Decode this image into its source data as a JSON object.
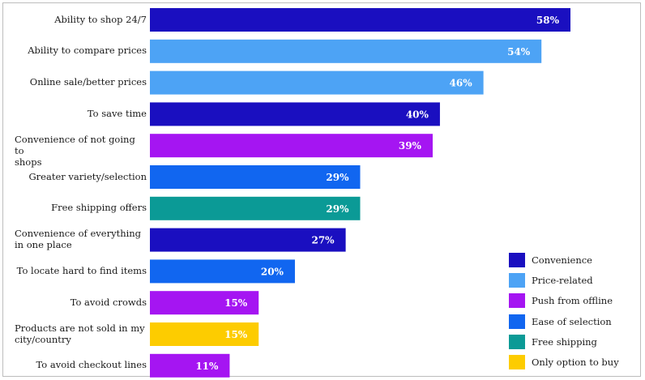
{
  "chart_data": {
    "type": "bar",
    "orientation": "horizontal",
    "xlim": [
      0,
      100
    ],
    "categories": [
      "Ability to shop 24/7",
      "Ability to compare prices",
      "Online sale/better prices",
      "To save time",
      "Convenience of not going to shops",
      "Greater variety/selection",
      "Free shipping offers",
      "Convenience of everything in one place",
      "To locate hard to find items",
      "To avoid crowds",
      "Products are not sold in my city/country",
      "To avoid checkout lines"
    ],
    "category_lines": [
      [
        "Ability to shop 24/7"
      ],
      [
        "Ability to compare prices"
      ],
      [
        "Online sale/better prices"
      ],
      [
        "To save time"
      ],
      [
        "Convenience of not going to",
        "shops"
      ],
      [
        "Greater variety/selection"
      ],
      [
        "Free shipping offers"
      ],
      [
        "Convenience of everything",
        "in one place"
      ],
      [
        "To locate hard to find items"
      ],
      [
        "To avoid crowds"
      ],
      [
        "Products are not sold in my",
        "city/country"
      ],
      [
        "To avoid checkout lines"
      ]
    ],
    "values": [
      58,
      54,
      46,
      40,
      39,
      29,
      29,
      27,
      20,
      15,
      15,
      11
    ],
    "value_labels": [
      "58%",
      "54%",
      "46%",
      "40%",
      "39%",
      "29%",
      "29%",
      "27%",
      "20%",
      "15%",
      "15%",
      "11%"
    ],
    "groups": [
      "Convenience",
      "Price-related",
      "Price-related",
      "Convenience",
      "Push from offline",
      "Ease of selection",
      "Free shipping",
      "Convenience",
      "Ease of selection",
      "Push from offline",
      "Only option to buy",
      "Push from offline"
    ],
    "legend": [
      {
        "name": "Convenience",
        "color": "#1a0fc0"
      },
      {
        "name": "Price-related",
        "color": "#4da3f5"
      },
      {
        "name": "Push from offline",
        "color": "#a515f2"
      },
      {
        "name": "Ease of selection",
        "color": "#1166f0"
      },
      {
        "name": "Free shipping",
        "color": "#0b9a96"
      },
      {
        "name": "Only option to buy",
        "color": "#fdcc00"
      }
    ],
    "legend_position": "bottom-right",
    "title": "",
    "xlabel": "",
    "ylabel": ""
  }
}
